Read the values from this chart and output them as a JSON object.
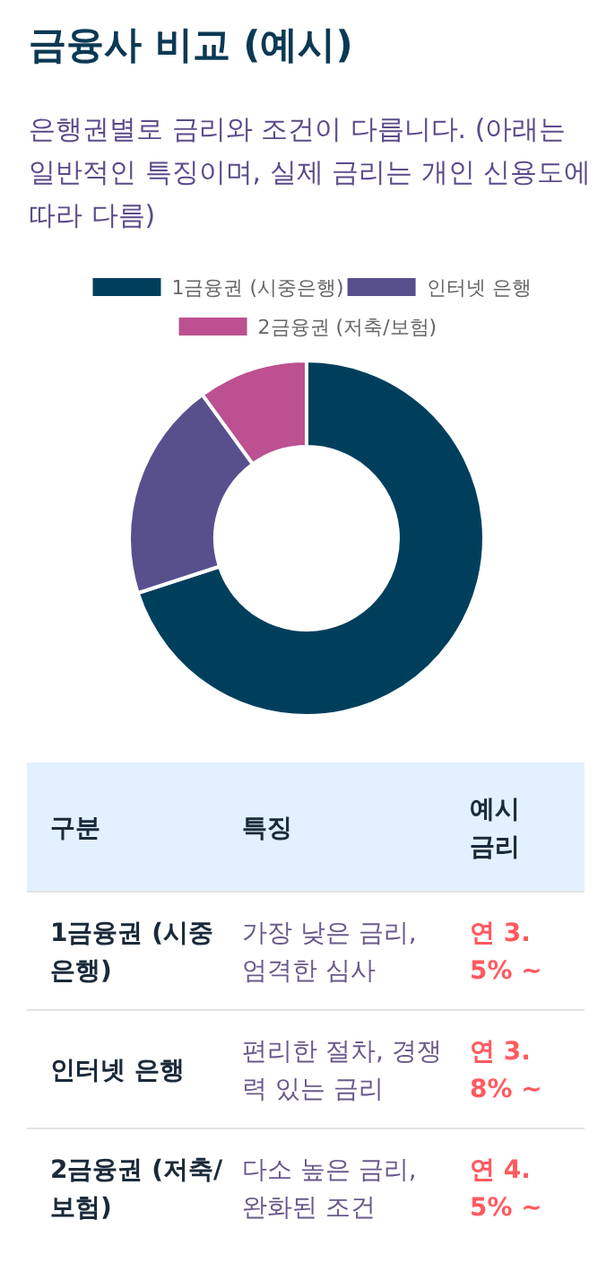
{
  "chart_data": [
    {
      "type": "donut",
      "title": "금융사 비교 (예시)",
      "subtitle": "은행권별로 금리와 조건이 다릅니다. (아래는 일반적인 특징이며, 실제 금리는 개인 신용도에 따라 다름)",
      "categories": [
        "1금융권 (시중은행)",
        "인터넷 은행",
        "2금융권 (저축/보험)"
      ],
      "values": [
        70,
        20,
        10
      ],
      "colors": [
        "#003f5c",
        "#58508d",
        "#bc5090"
      ],
      "legend": "top"
    },
    {
      "type": "other",
      "annotations": [
        "구분",
        "특징",
        "예시 금리",
        "1금융권 (시중은행)",
        "가장 낮은 금리, 엄격한 심사",
        "연 3.5% ~",
        "인터넷 은행",
        "편리한 절차, 경쟁력 있는 금리",
        "연 3.8% ~",
        "2금융권 (저축/보험)",
        "다소 높은 금리, 완화된 조건",
        "연 4.5% ~"
      ]
    }
  ]
}
